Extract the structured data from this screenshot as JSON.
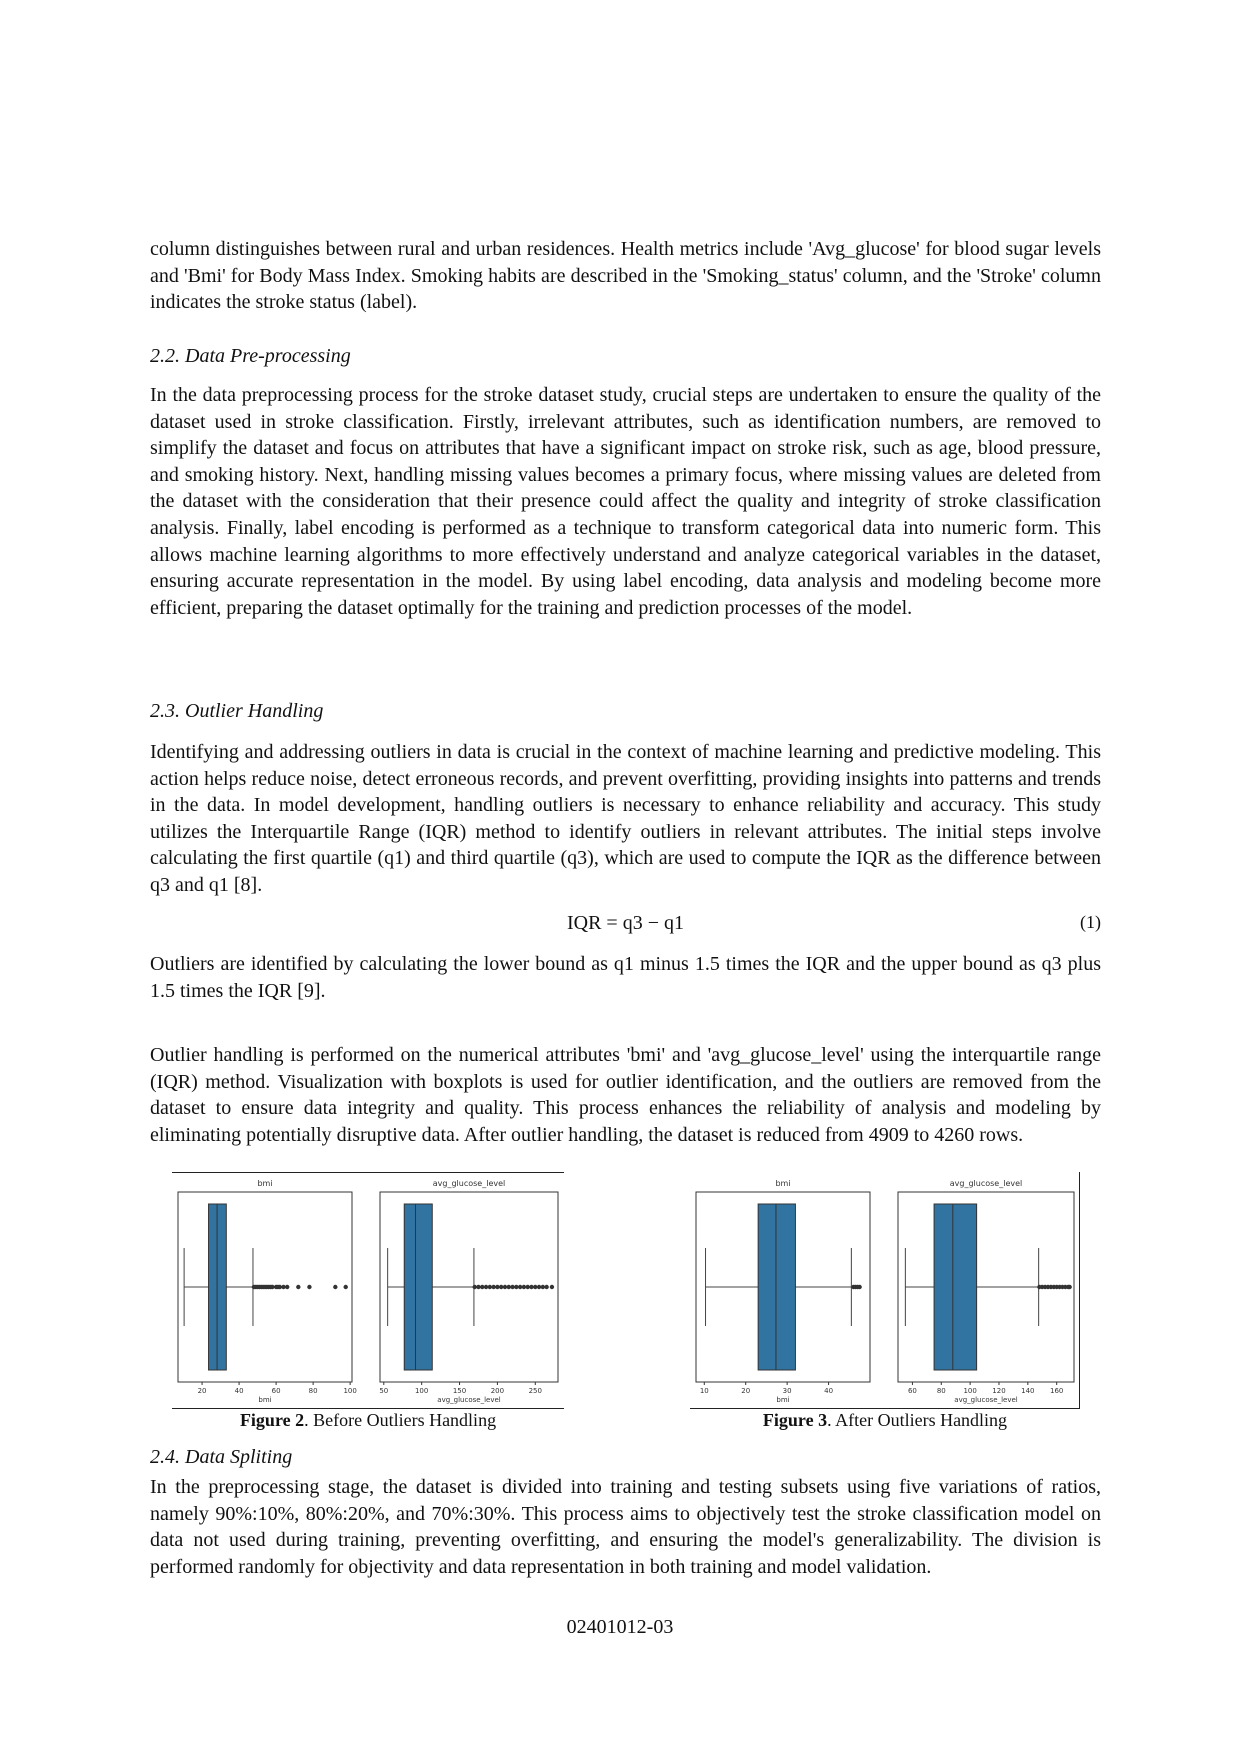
{
  "paragraphs": {
    "p1": "column distinguishes between rural and urban residences. Health metrics include 'Avg_glucose' for blood sugar levels and 'Bmi' for Body Mass Index. Smoking habits are described in the 'Smoking_status' column, and the 'Stroke' column indicates the stroke status (label).",
    "h22": "2.2.  Data Pre-processing",
    "p2": "In the data preprocessing process for the stroke dataset study, crucial steps are undertaken to ensure the quality of the dataset used in stroke classification. Firstly, irrelevant attributes, such as identification numbers, are removed to simplify the dataset and focus on attributes that have a significant impact on stroke risk, such as age, blood pressure, and smoking history. Next, handling missing values becomes a primary focus, where missing values are deleted from the dataset with the consideration that their presence could affect the quality and integrity of stroke classification analysis. Finally, label encoding is performed as a technique to transform categorical data into numeric form. This allows machine learning algorithms to more effectively understand and analyze categorical variables in the dataset, ensuring accurate representation in the model. By using label encoding, data analysis and modeling become more efficient, preparing the dataset optimally for the training and prediction processes of the model.",
    "h23": "2.3.  Outlier Handling",
    "p3": "Identifying and addressing outliers in data is crucial in the context of machine learning and predictive modeling. This action helps reduce noise, detect erroneous records, and prevent overfitting, providing insights into patterns and trends in the data. In model development, handling outliers is necessary to enhance reliability and accuracy. This study utilizes the Interquartile Range (IQR) method to identify outliers in relevant attributes. The initial steps involve calculating the first quartile (q1) and third quartile (q3), which are used to compute the IQR as the difference between q3 and q1 [8].",
    "equation": "IQR = q3 − q1",
    "equation_number": "(1)",
    "p4": "Outliers are identified by calculating the lower bound as q1 minus 1.5 times the IQR and the upper bound as q3 plus 1.5 times the IQR [9].",
    "p5": "Outlier handling is performed on the numerical attributes 'bmi' and 'avg_glucose_level' using the interquartile range (IQR) method. Visualization with boxplots is used for outlier identification, and the outliers are removed from the dataset to ensure data integrity and quality. This process enhances the reliability of analysis and modeling by eliminating potentially disruptive data. After outlier handling, the dataset is reduced from 4909 to 4260 rows.",
    "h24": "2.4.  Data Spliting",
    "p6": "In the preprocessing stage, the dataset is divided into training and testing subsets using five variations of ratios, namely 90%:10%, 80%:20%, and 70%:30%. This process aims to objectively test the stroke classification model on data not used during training, preventing overfitting, and ensuring the model's generalizability. The division is performed randomly for objectivity and data representation in both training and model validation."
  },
  "captions": {
    "fig2_label": "Figure 2",
    "fig2_text": ". Before Outliers Handling",
    "fig3_label": "Figure 3",
    "fig3_text": ". After Outliers Handling"
  },
  "page_number": "02401012-03",
  "box_color": "#3274a1",
  "chart_data": [
    {
      "figure": "Figure 2",
      "type": "boxplot",
      "title": "bmi",
      "xlabel": "bmi",
      "xlim": [
        7,
        101
      ],
      "ticks": [
        20,
        40,
        60,
        80,
        100
      ],
      "whisker_low": 10.3,
      "q1": 23.5,
      "median": 28.1,
      "q3": 33.1,
      "whisker_high": 47.5,
      "outliers": [
        48,
        49,
        50,
        51,
        52,
        53,
        54,
        55,
        56,
        57,
        58,
        60,
        61,
        62,
        64,
        66,
        72,
        78,
        92,
        97.6
      ]
    },
    {
      "figure": "Figure 2",
      "type": "boxplot",
      "title": "avg_glucose_level",
      "xlabel": "avg_glucose_level",
      "xlim": [
        45,
        280
      ],
      "ticks": [
        50,
        100,
        150,
        200,
        250
      ],
      "whisker_low": 55.1,
      "q1": 77,
      "median": 91.9,
      "q3": 114,
      "whisker_high": 169,
      "outliers": [
        170,
        175,
        180,
        185,
        190,
        195,
        200,
        205,
        210,
        215,
        220,
        225,
        230,
        235,
        240,
        245,
        250,
        255,
        260,
        265,
        272
      ]
    },
    {
      "figure": "Figure 3",
      "type": "boxplot",
      "title": "bmi",
      "xlabel": "bmi",
      "xlim": [
        8,
        50
      ],
      "ticks": [
        10,
        20,
        30,
        40
      ],
      "whisker_low": 10.3,
      "q1": 23,
      "median": 27.3,
      "q3": 32,
      "whisker_high": 45.5,
      "outliers": [
        46,
        46.5,
        47,
        47.5
      ]
    },
    {
      "figure": "Figure 3",
      "type": "boxplot",
      "title": "avg_glucose_level",
      "xlabel": "avg_glucose_level",
      "xlim": [
        50,
        172
      ],
      "ticks": [
        60,
        80,
        100,
        120,
        140,
        160
      ],
      "whisker_low": 55.1,
      "q1": 75,
      "median": 88,
      "q3": 104.5,
      "whisker_high": 147.5,
      "outliers": [
        148,
        150,
        152,
        154,
        156,
        158,
        160,
        162,
        164,
        166,
        168,
        169
      ]
    }
  ]
}
